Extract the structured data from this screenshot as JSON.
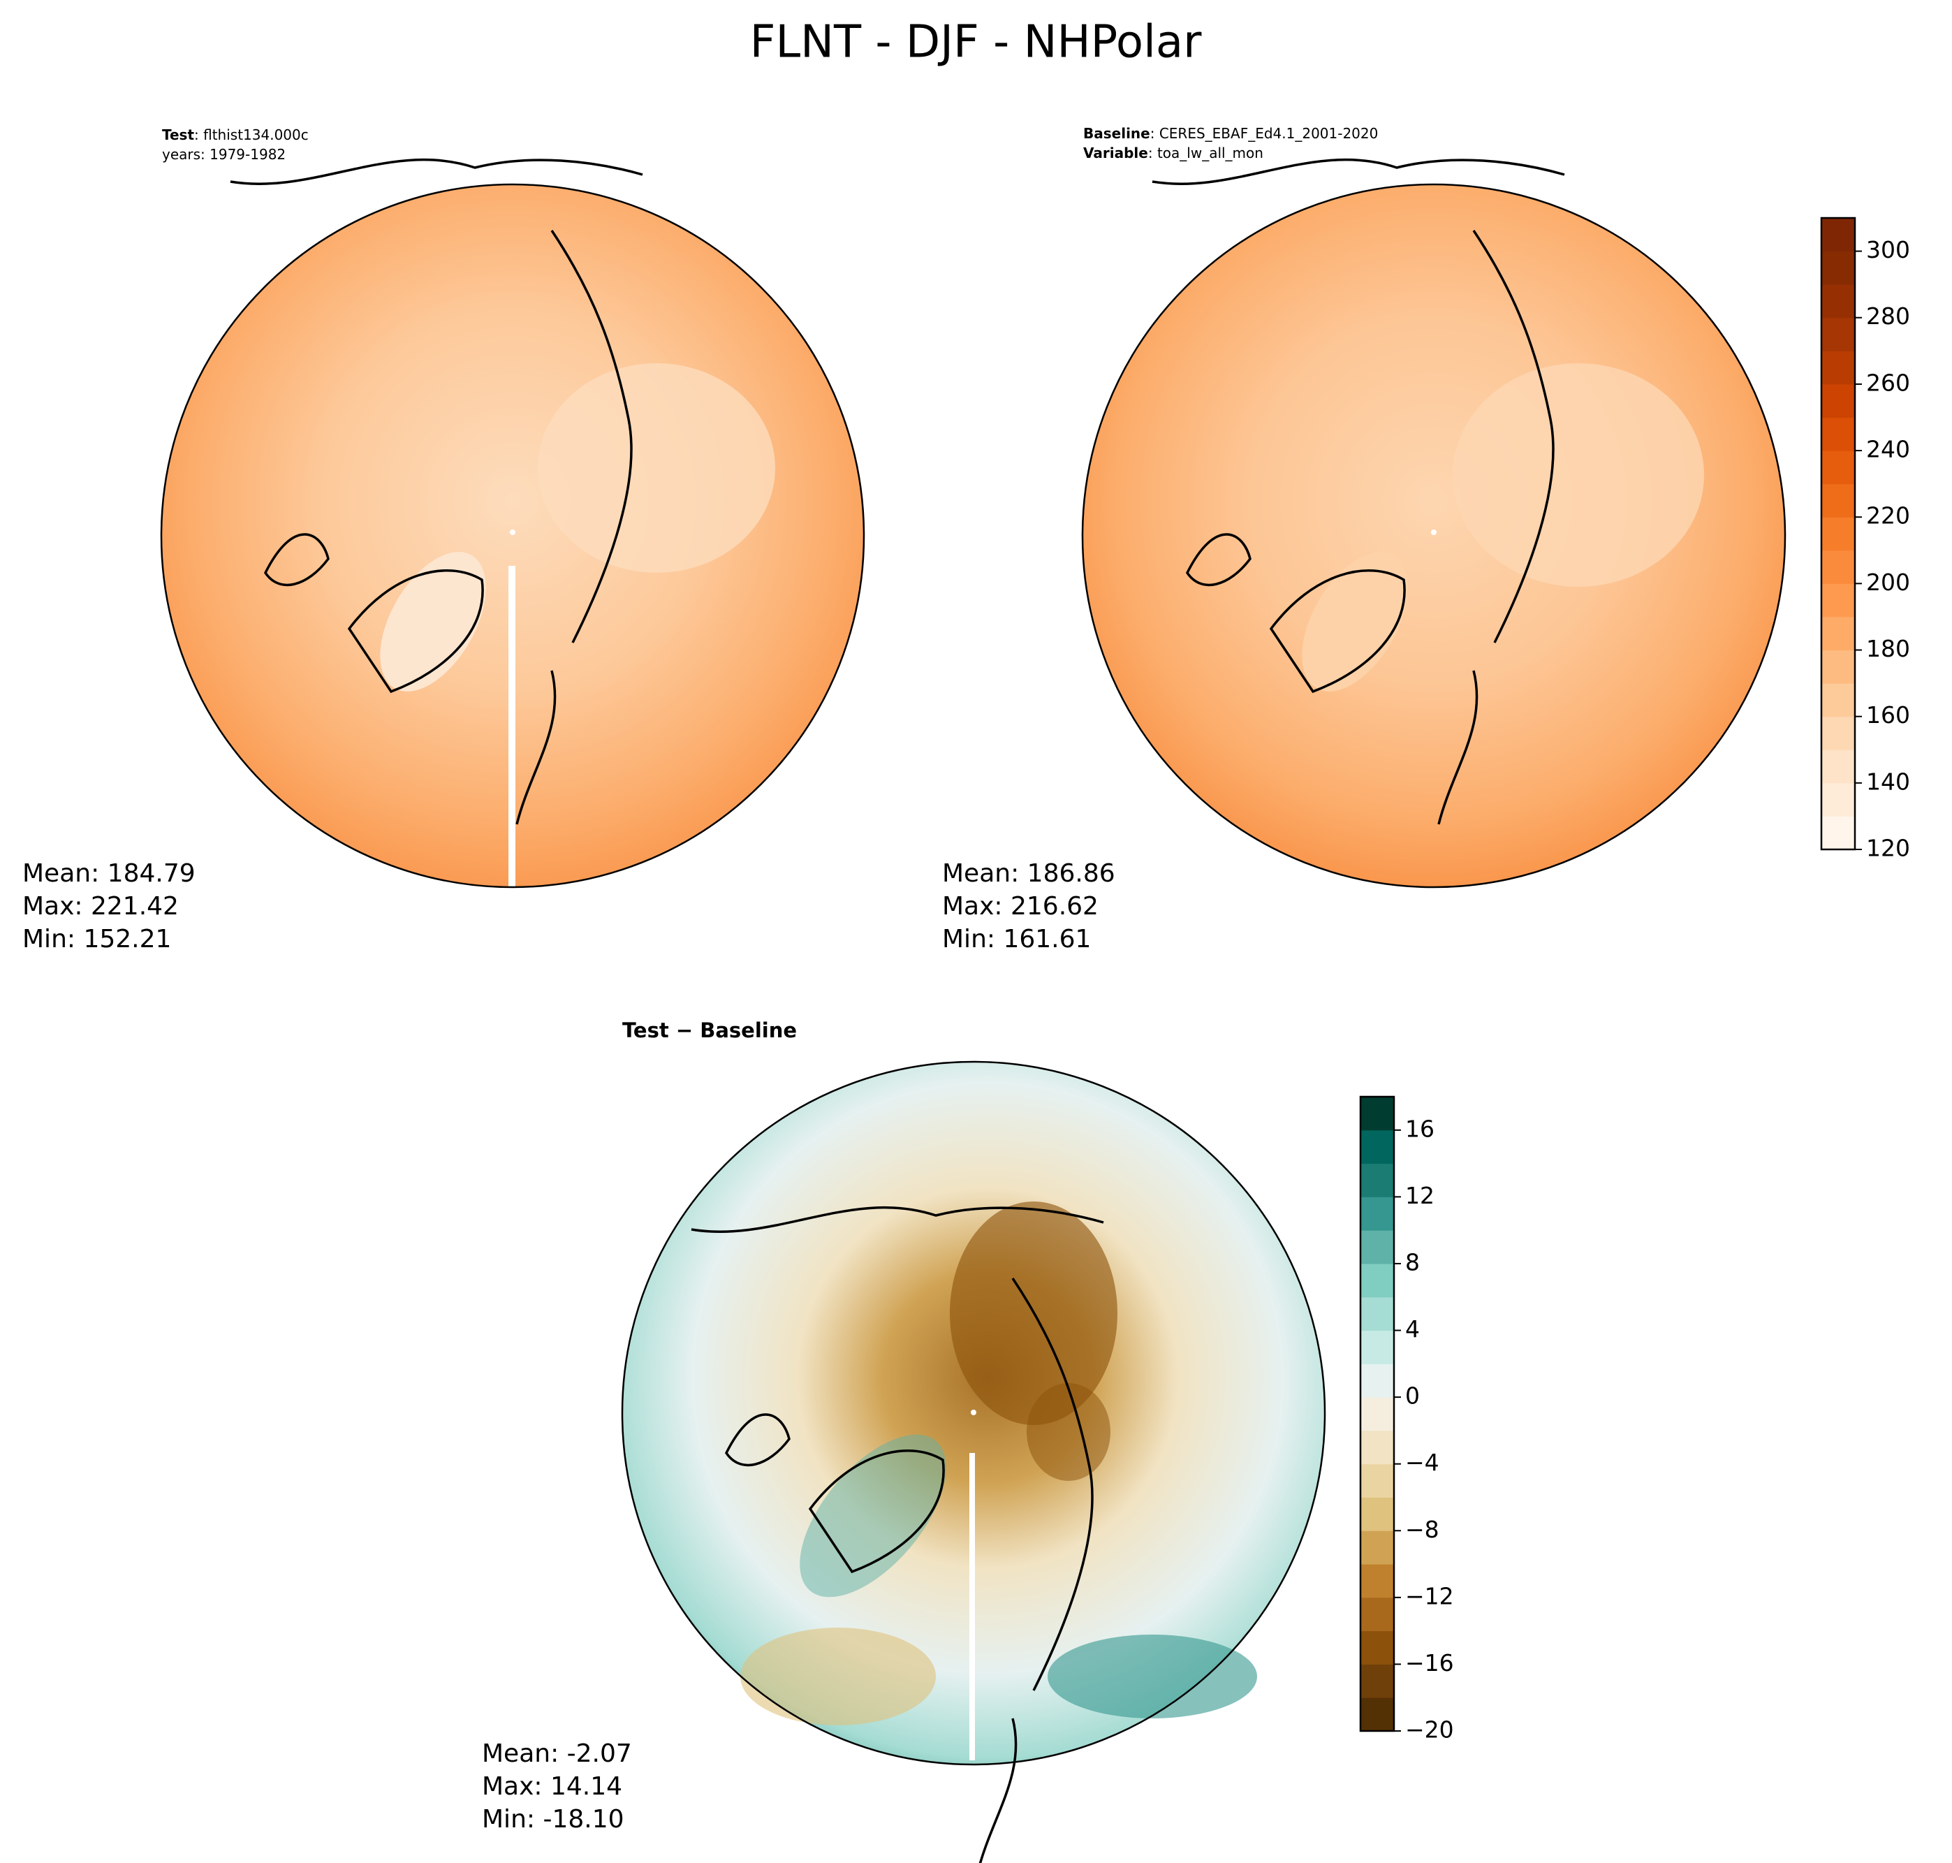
{
  "title": "FLNT - DJF - NHPolar",
  "panels": [
    {
      "header": [
        {
          "bold": "Test",
          "text": ": flthist134.000c"
        },
        {
          "text": "years: 1979-1982"
        }
      ],
      "stats": [
        "Mean: 184.79",
        "Max: 221.42",
        "Min: 152.21"
      ]
    },
    {
      "header": [
        {
          "bold": "Baseline",
          "text": ": CERES_EBAF_Ed4.1_2001-2020"
        },
        {
          "bold": "Variable",
          "text": ": toa_lw_all_mon"
        }
      ],
      "stats": [
        "Mean: 186.86",
        "Max: 216.62",
        "Min: 161.61"
      ]
    },
    {
      "title": "Test − Baseline",
      "stats": [
        "Mean: -2.07",
        "Max: 14.14",
        "Min: -18.10"
      ]
    }
  ],
  "colorbars": [
    {
      "range": [
        120,
        310
      ],
      "ticks": [
        120,
        140,
        160,
        180,
        200,
        220,
        240,
        260,
        280,
        300
      ],
      "colors": [
        "#fff5eb",
        "#feecd9",
        "#fee3c8",
        "#fdd8b3",
        "#fdca99",
        "#fdbb81",
        "#fdab67",
        "#fd9a50",
        "#fb8b3c",
        "#f67d2a",
        "#ef6c19",
        "#e55d0d",
        "#db4f06",
        "#cc4302",
        "#b93d02",
        "#a63603",
        "#963003",
        "#872b03",
        "#7f2704"
      ]
    },
    {
      "range": [
        -20,
        18
      ],
      "ticks": [
        {
          "value": -20,
          "label": "−20"
        },
        {
          "value": -16,
          "label": "−16"
        },
        {
          "value": -12,
          "label": "−12"
        },
        {
          "value": -8,
          "label": "−8"
        },
        {
          "value": -4,
          "label": "−4"
        },
        0,
        4,
        8,
        12,
        16
      ],
      "colors": [
        "#543005",
        "#70400a",
        "#8c510a",
        "#a8691d",
        "#bf812d",
        "#d0a354",
        "#dfc27d",
        "#ead4a2",
        "#f1e3c3",
        "#f5eedf",
        "#e6f1f0",
        "#c7eae5",
        "#a5dcd3",
        "#80cdc1",
        "#5fb2a8",
        "#35978f",
        "#1b7c73",
        "#01665e",
        "#003c30"
      ]
    }
  ]
}
